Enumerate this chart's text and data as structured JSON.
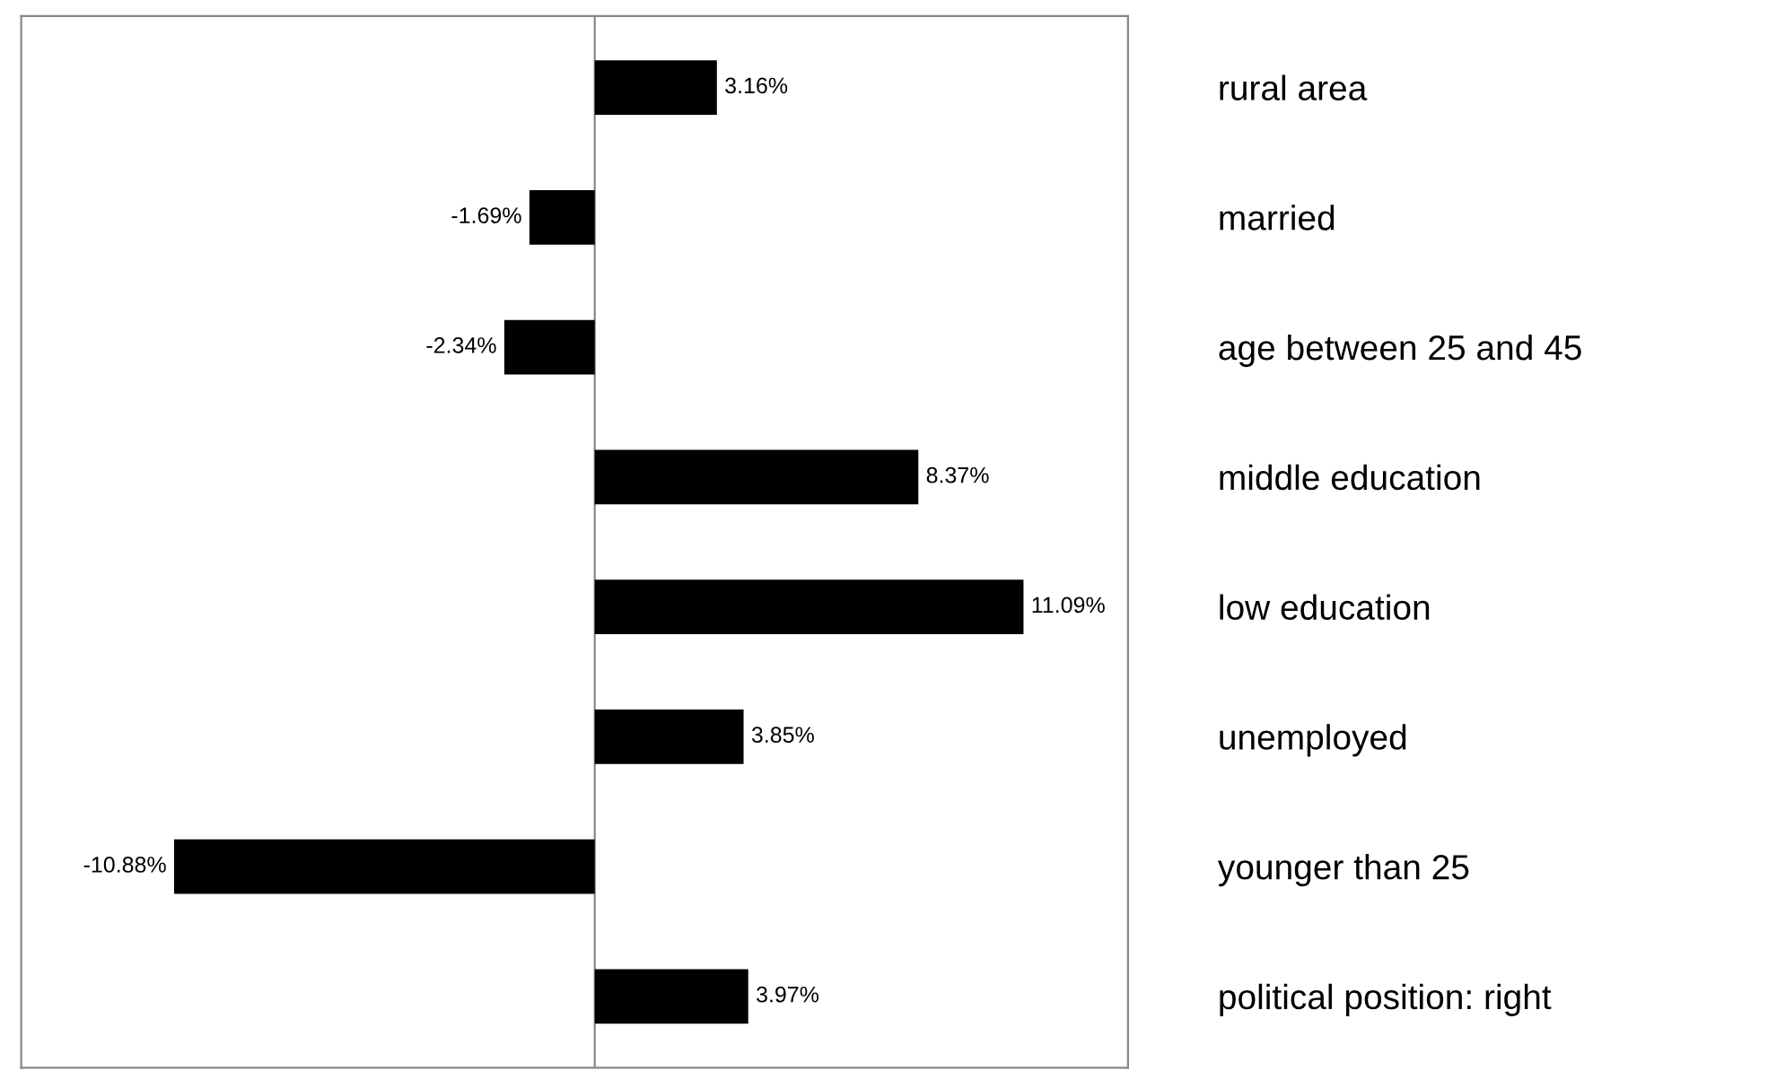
{
  "chart_data": {
    "type": "bar",
    "orientation": "horizontal",
    "categories": [
      "rural area",
      "married",
      "age between 25 and 45",
      "middle education",
      "low education",
      "unemployed",
      "younger than 25",
      "political position: right"
    ],
    "values": [
      3.16,
      -1.69,
      -2.34,
      8.37,
      11.09,
      3.85,
      -10.88,
      3.97
    ],
    "value_labels": [
      "3.16%",
      "-1.69%",
      "-2.34%",
      "8.37%",
      "11.09%",
      "3.85%",
      "-10.88%",
      "3.97%"
    ],
    "color": "#000000",
    "grid": false,
    "legend": false
  }
}
